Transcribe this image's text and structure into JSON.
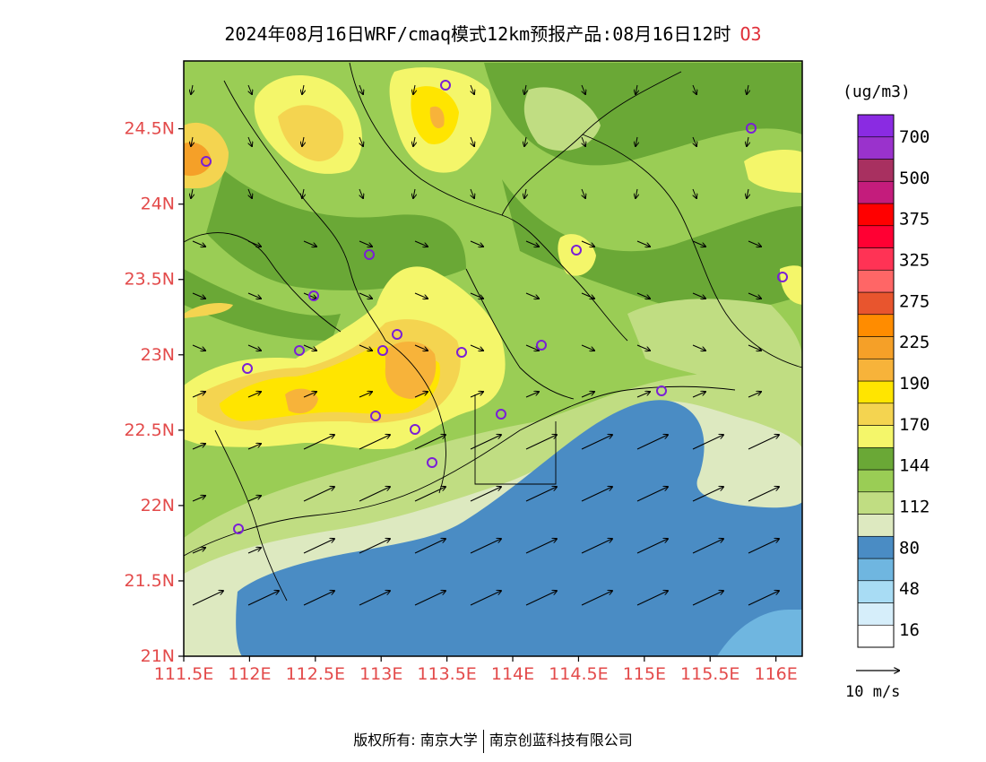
{
  "title": {
    "text": "2024年08月16日WRF/cmaq模式12km预报产品:08月16日12时",
    "species": "O3"
  },
  "map": {
    "lon_ticks": [
      "111.5E",
      "112E",
      "112.5E",
      "113E",
      "113.5E",
      "114E",
      "114.5E",
      "115E",
      "115.5E",
      "116E"
    ],
    "lat_ticks": [
      "24.5N",
      "24N",
      "23.5N",
      "23N",
      "22.5N",
      "22N",
      "21.5N",
      "21N"
    ],
    "lon_range": [
      111.5,
      116.2
    ],
    "lat_range": [
      21,
      24.95
    ],
    "stations_count_visible": 19
  },
  "colorbar": {
    "unit": "(ug/m3)",
    "labels": [
      "700",
      "500",
      "375",
      "325",
      "275",
      "225",
      "190",
      "170",
      "144",
      "112",
      "80",
      "48",
      "16"
    ],
    "colors": [
      "#ffffff",
      "#d6eefa",
      "#a8dcf4",
      "#6fb6e0",
      "#4a8cc4",
      "#dde9c0",
      "#c0dd82",
      "#9acd55",
      "#6aa836",
      "#f4f66a",
      "#f4d450",
      "#ffe500",
      "#f7b33a",
      "#f5a028",
      "#ff8c00",
      "#e8552e",
      "#ff6666",
      "#ff3355",
      "#ff0033",
      "#ff0000",
      "#c41c7c",
      "#a83060",
      "#9a32cc",
      "#8a2be2"
    ]
  },
  "wind_reference": {
    "label": "10 m/s"
  },
  "footer": {
    "left": "版权所有: 南京大学",
    "right": "南京创蓝科技有限公司"
  }
}
